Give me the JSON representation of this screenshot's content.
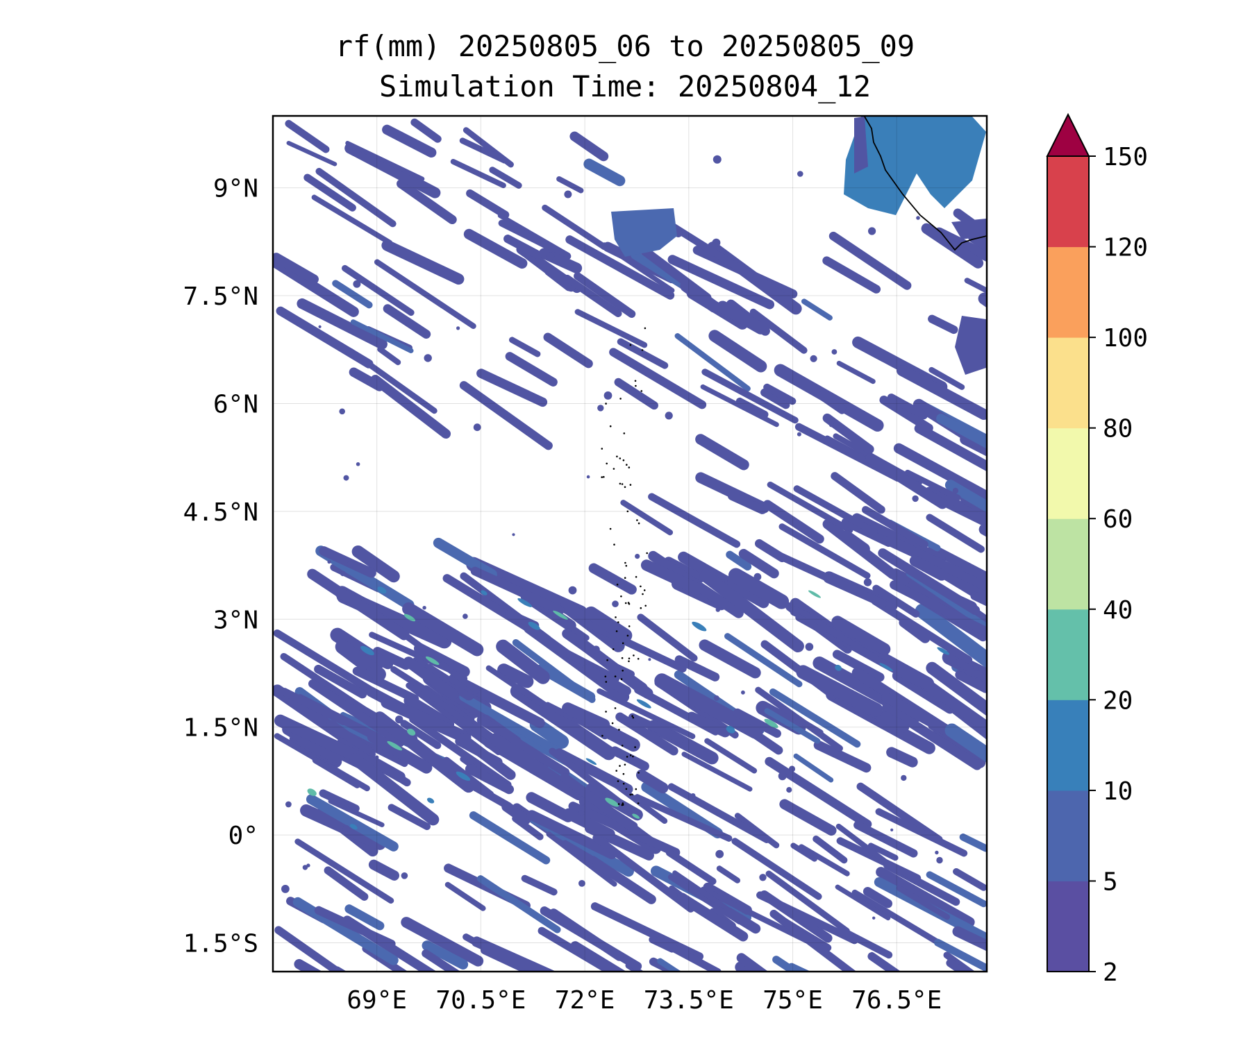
{
  "title_line1": "rf(mm) 20250805_06 to 20250805_09",
  "title_line2": "Simulation Time: 20250804_12",
  "map": {
    "lon_range": [
      67.5,
      77.8
    ],
    "lat_range": [
      -1.9,
      10.0
    ],
    "lat_ticks": [
      {
        "value": 9,
        "label": "9°N"
      },
      {
        "value": 7.5,
        "label": "7.5°N"
      },
      {
        "value": 6,
        "label": "6°N"
      },
      {
        "value": 4.5,
        "label": "4.5°N"
      },
      {
        "value": 3,
        "label": "3°N"
      },
      {
        "value": 1.5,
        "label": "1.5°N"
      },
      {
        "value": 0,
        "label": "0°"
      },
      {
        "value": -1.5,
        "label": "1.5°S"
      }
    ],
    "lon_ticks": [
      {
        "value": 69,
        "label": "69°E"
      },
      {
        "value": 70.5,
        "label": "70.5°E"
      },
      {
        "value": 72,
        "label": "72°E"
      },
      {
        "value": 73.5,
        "label": "73.5°E"
      },
      {
        "value": 75,
        "label": "75°E"
      },
      {
        "value": 76.5,
        "label": "76.5°E"
      }
    ],
    "gridlines": true,
    "rain_color_main": "#5155a3",
    "rain_color_light": "#4b69b0",
    "rain_color_heavy": "#3a7fb9",
    "rain_color_teal": "#5fbba8"
  },
  "colorbar": {
    "levels": [
      "2",
      "5",
      "10",
      "20",
      "40",
      "60",
      "80",
      "100",
      "120",
      "150"
    ],
    "colors": [
      "#5a4fa2",
      "#4d66ae",
      "#3880ba",
      "#64c0aa",
      "#bde3a3",
      "#f2f9ac",
      "#fbe08c",
      "#faa05c",
      "#d8414c"
    ],
    "extend_color": "#9e0142",
    "extend": "max"
  }
}
